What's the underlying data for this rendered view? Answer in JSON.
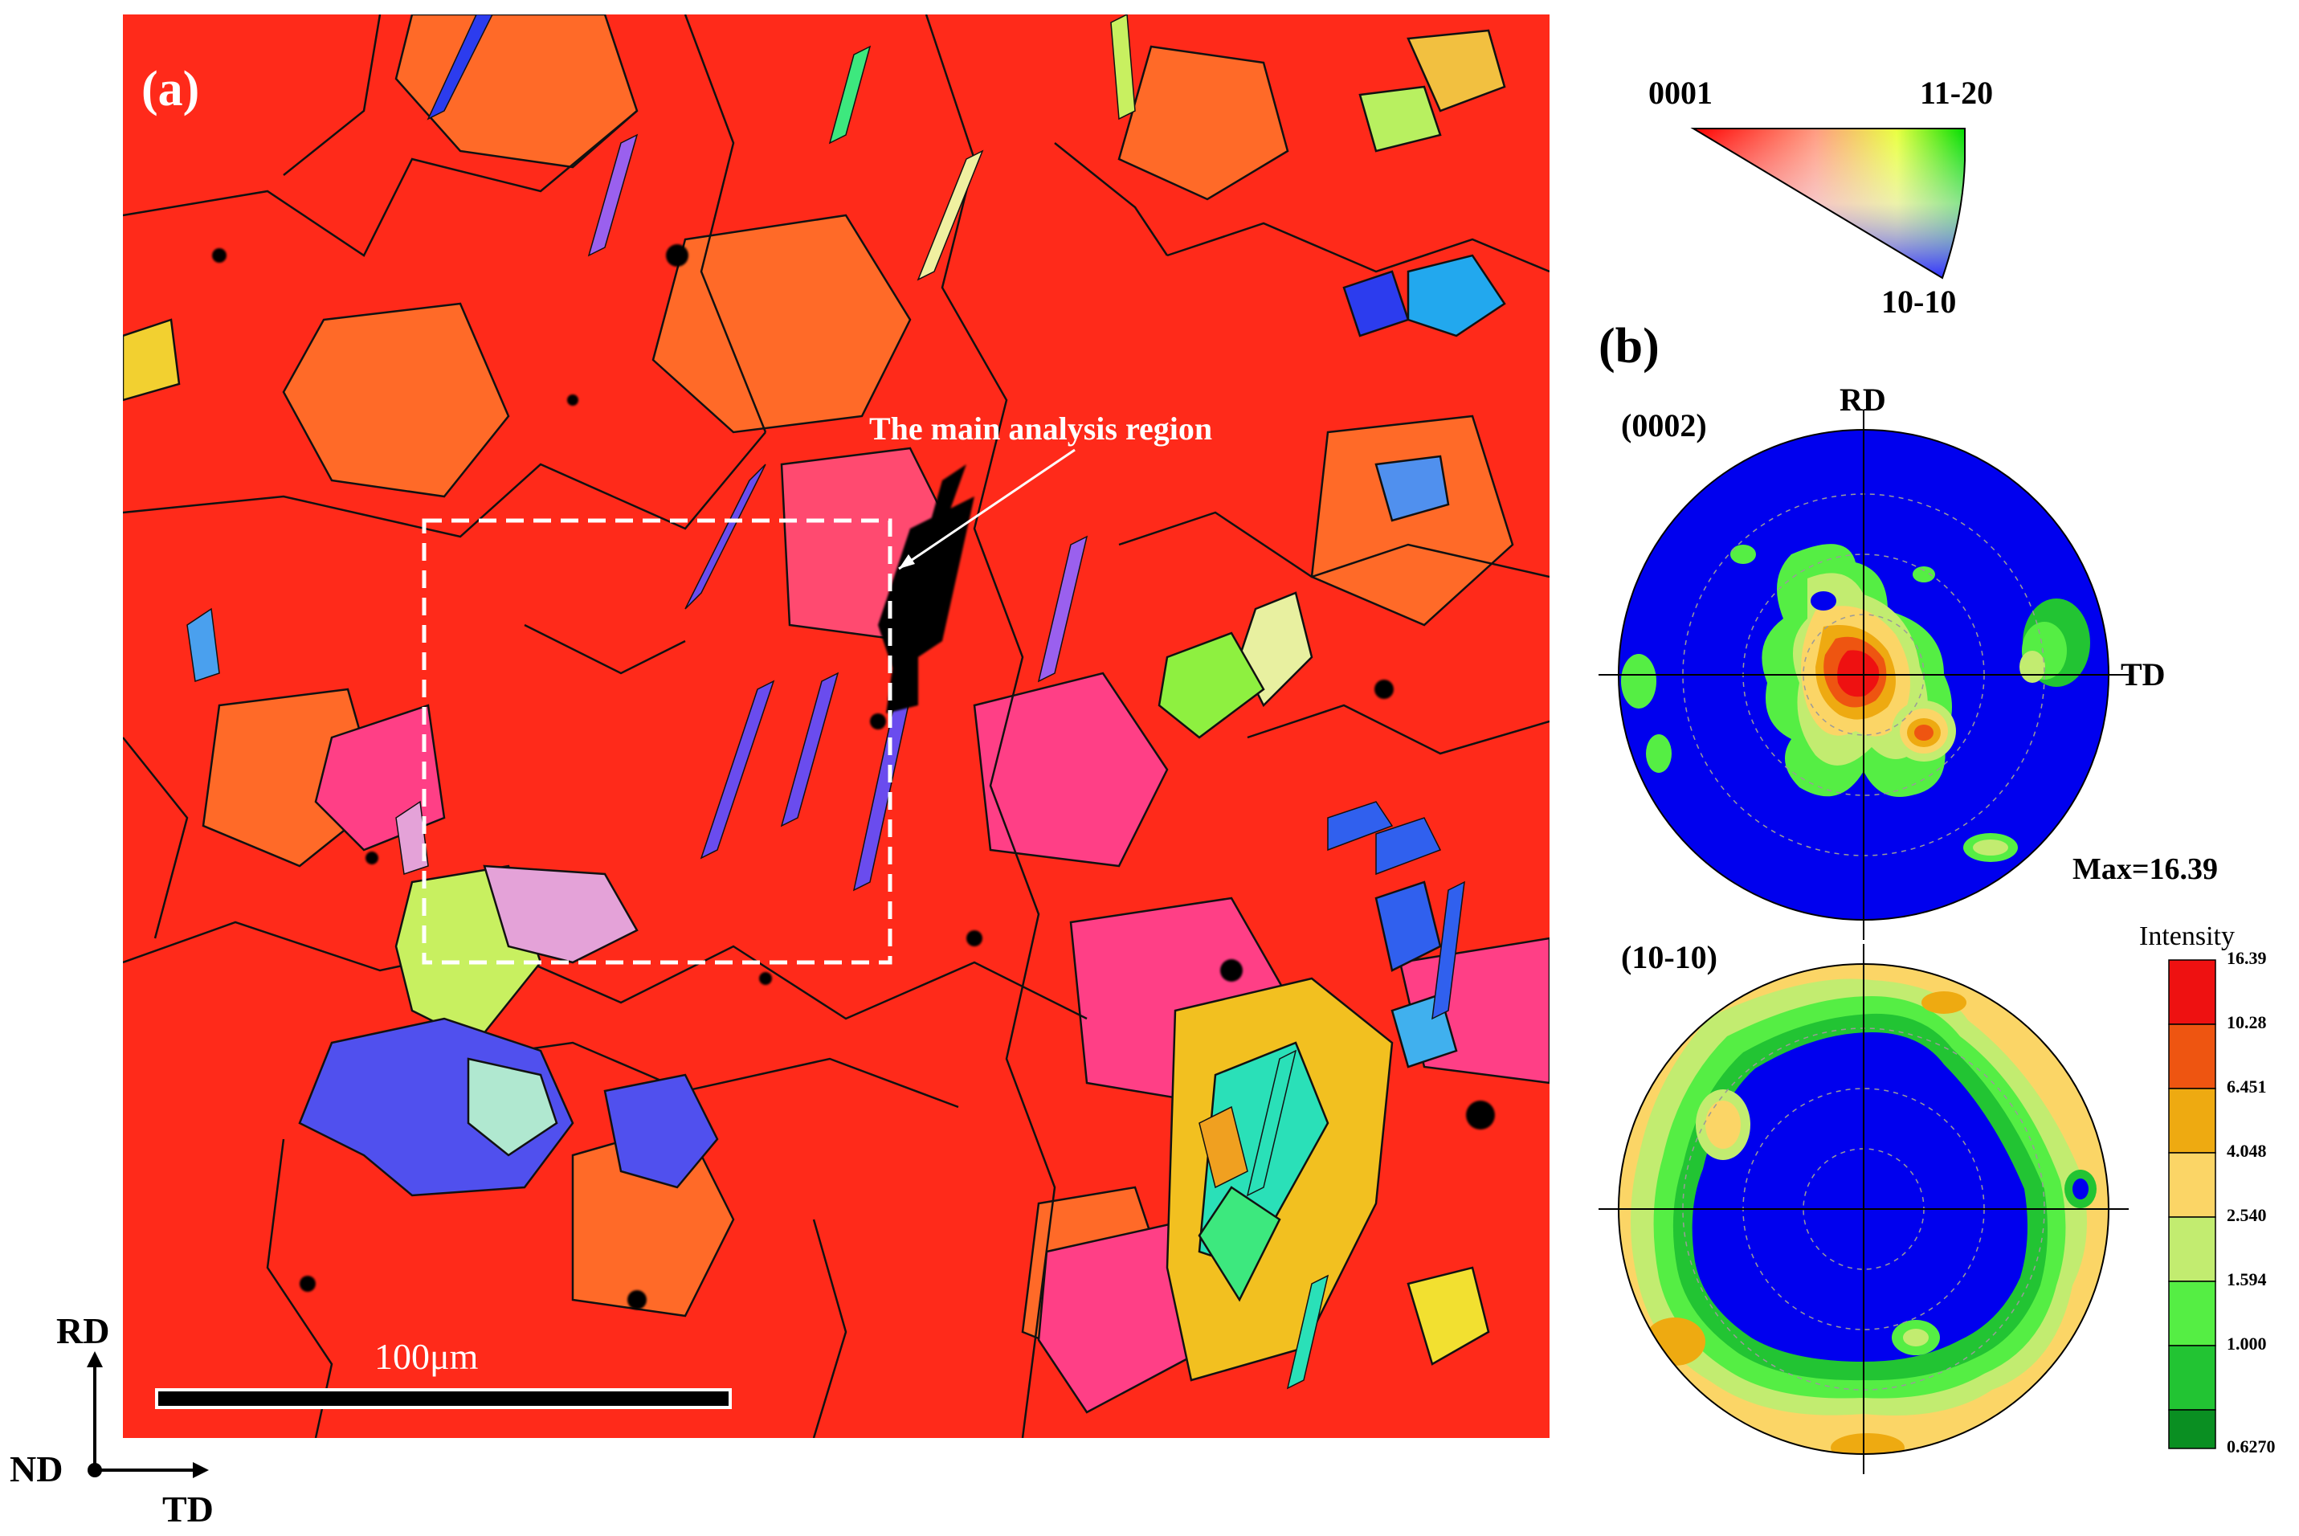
{
  "panel_a": {
    "label": "(a)",
    "annotation": "The main analysis region",
    "scale_bar": "100μm",
    "axes": {
      "vertical": "RD",
      "center": "ND",
      "horizontal": "TD"
    }
  },
  "ipf_key": {
    "corner_top_left": "0001",
    "corner_top_right": "11-20",
    "corner_bottom": "10-10",
    "colors": {
      "0001": "#ff0000",
      "11-20": "#00dd00",
      "10-10": "#2b2bff"
    }
  },
  "panel_b": {
    "label": "(b)",
    "pf_0002": {
      "title": "(0002)",
      "rd_label": "RD",
      "td_label": "TD",
      "max_text": "Max=16.39"
    },
    "pf_1010": {
      "title": "(10-10)"
    }
  },
  "legend": {
    "title": "Intensity",
    "levels": [
      "16.39",
      "10.28",
      "6.451",
      "4.048",
      "2.540",
      "1.594",
      "1.000",
      "0.6270"
    ],
    "colors": [
      "#ee1111",
      "#ee5511",
      "#eeaa11",
      "#fbd566",
      "#c2ec70",
      "#55ee44",
      "#22c433",
      "#0a8f22"
    ]
  },
  "colors": {
    "background_level": "#0000ee",
    "grain_main": "#ff2a1a"
  }
}
